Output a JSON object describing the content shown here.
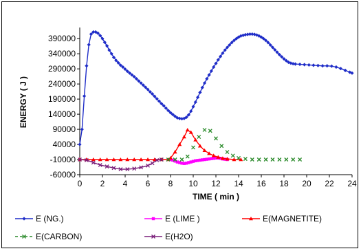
{
  "chart_data": {
    "type": "line",
    "title": "",
    "xlabel": "TIME ( min )",
    "ylabel": "ENERGY ( J )",
    "xlim": [
      0,
      24
    ],
    "ylim": [
      -60000,
      420000
    ],
    "x_ticks": [
      0,
      2,
      4,
      6,
      8,
      10,
      12,
      14,
      16,
      18,
      20,
      22,
      24
    ],
    "y_ticks": [
      -60000,
      -10000,
      40000,
      90000,
      140000,
      190000,
      240000,
      290000,
      340000,
      390000
    ],
    "grid": false,
    "legend_position": "bottom",
    "series": [
      {
        "name": "E (NG.)",
        "color": "#1f2dc8",
        "marker": "diamond",
        "line": "solid",
        "points": [
          [
            0,
            40000
          ],
          [
            0.2,
            90000
          ],
          [
            0.4,
            200000
          ],
          [
            0.6,
            300000
          ],
          [
            0.8,
            370000
          ],
          [
            1.0,
            405000
          ],
          [
            1.2,
            412000
          ],
          [
            1.4,
            412000
          ],
          [
            1.6,
            408000
          ],
          [
            1.8,
            400000
          ],
          [
            2.0,
            390000
          ],
          [
            2.2,
            378000
          ],
          [
            2.4,
            366000
          ],
          [
            2.6,
            352000
          ],
          [
            2.8,
            340000
          ],
          [
            3.0,
            328000
          ],
          [
            3.2,
            318000
          ],
          [
            3.4,
            310000
          ],
          [
            3.6,
            302000
          ],
          [
            3.8,
            296000
          ],
          [
            4.0,
            289000
          ],
          [
            4.2,
            282000
          ],
          [
            4.4,
            276000
          ],
          [
            4.6,
            270000
          ],
          [
            4.8,
            264000
          ],
          [
            5.0,
            257000
          ],
          [
            5.2,
            250000
          ],
          [
            5.4,
            243000
          ],
          [
            5.6,
            236000
          ],
          [
            5.8,
            229000
          ],
          [
            6.0,
            222000
          ],
          [
            6.2,
            214000
          ],
          [
            6.4,
            207000
          ],
          [
            6.6,
            199000
          ],
          [
            6.8,
            191000
          ],
          [
            7.0,
            183000
          ],
          [
            7.2,
            175000
          ],
          [
            7.4,
            168000
          ],
          [
            7.6,
            160000
          ],
          [
            7.8,
            152000
          ],
          [
            8.0,
            145000
          ],
          [
            8.2,
            139000
          ],
          [
            8.4,
            133000
          ],
          [
            8.6,
            128000
          ],
          [
            8.8,
            126000
          ],
          [
            9.0,
            125000
          ],
          [
            9.2,
            126000
          ],
          [
            9.4,
            130000
          ],
          [
            9.6,
            138000
          ],
          [
            9.8,
            150000
          ],
          [
            10.0,
            165000
          ],
          [
            10.2,
            180000
          ],
          [
            10.4,
            196000
          ],
          [
            10.6,
            212000
          ],
          [
            10.8,
            228000
          ],
          [
            11.0,
            243000
          ],
          [
            11.2,
            257000
          ],
          [
            11.4,
            270000
          ],
          [
            11.6,
            283000
          ],
          [
            11.8,
            296000
          ],
          [
            12.0,
            308000
          ],
          [
            12.2,
            320000
          ],
          [
            12.4,
            331000
          ],
          [
            12.6,
            342000
          ],
          [
            12.8,
            352000
          ],
          [
            13.0,
            361000
          ],
          [
            13.2,
            369000
          ],
          [
            13.4,
            377000
          ],
          [
            13.6,
            384000
          ],
          [
            13.8,
            390000
          ],
          [
            14.0,
            395000
          ],
          [
            14.2,
            399000
          ],
          [
            14.4,
            401000
          ],
          [
            14.6,
            403000
          ],
          [
            14.8,
            404000
          ],
          [
            15.0,
            405000
          ],
          [
            15.2,
            405000
          ],
          [
            15.4,
            404000
          ],
          [
            15.6,
            402000
          ],
          [
            15.8,
            399000
          ],
          [
            16.0,
            395000
          ],
          [
            16.2,
            390000
          ],
          [
            16.4,
            384000
          ],
          [
            16.6,
            377000
          ],
          [
            16.8,
            369000
          ],
          [
            17.0,
            361000
          ],
          [
            17.2,
            353000
          ],
          [
            17.4,
            345000
          ],
          [
            17.6,
            337000
          ],
          [
            17.8,
            330000
          ],
          [
            18.0,
            323000
          ],
          [
            18.2,
            317000
          ],
          [
            18.4,
            312000
          ],
          [
            18.6,
            309000
          ],
          [
            18.8,
            307000
          ],
          [
            19.0,
            306000
          ],
          [
            19.4,
            305000
          ],
          [
            19.8,
            304000
          ],
          [
            20.2,
            303000
          ],
          [
            20.6,
            302000
          ],
          [
            21.0,
            301000
          ],
          [
            21.4,
            300000
          ],
          [
            21.8,
            300000
          ],
          [
            22.2,
            299000
          ],
          [
            22.6,
            296000
          ],
          [
            23.0,
            291000
          ],
          [
            23.4,
            285000
          ],
          [
            23.8,
            279000
          ],
          [
            24.0,
            276000
          ]
        ]
      },
      {
        "name": "E (LIME )",
        "color": "#ff00ff",
        "marker": "square",
        "line": "solid",
        "points": [
          [
            8.0,
            -10000
          ],
          [
            8.2,
            -12000
          ],
          [
            8.4,
            -15000
          ],
          [
            8.6,
            -18000
          ],
          [
            8.8,
            -20000
          ],
          [
            9.0,
            -22000
          ],
          [
            9.2,
            -23000
          ],
          [
            9.4,
            -22000
          ],
          [
            9.6,
            -20000
          ],
          [
            9.8,
            -18000
          ],
          [
            10.0,
            -16000
          ],
          [
            10.2,
            -14000
          ],
          [
            10.4,
            -13000
          ],
          [
            10.6,
            -12000
          ],
          [
            10.8,
            -11000
          ],
          [
            11.0,
            -10000
          ],
          [
            11.2,
            -9000
          ],
          [
            11.4,
            -8000
          ],
          [
            11.6,
            -7000
          ],
          [
            11.8,
            -6000
          ],
          [
            12.0,
            -5000
          ],
          [
            12.2,
            -5000
          ],
          [
            12.4,
            -6000
          ],
          [
            12.6,
            -8000
          ],
          [
            12.8,
            -9000
          ],
          [
            13.0,
            -10000
          ]
        ]
      },
      {
        "name": "E(MAGNETITE)",
        "color": "#ff0000",
        "marker": "triangle",
        "line": "solid",
        "points": [
          [
            0,
            -10000
          ],
          [
            0.6,
            -10000
          ],
          [
            1.2,
            -10000
          ],
          [
            1.8,
            -10000
          ],
          [
            2.4,
            -10000
          ],
          [
            3.0,
            -10000
          ],
          [
            3.6,
            -10000
          ],
          [
            4.2,
            -10000
          ],
          [
            4.8,
            -10000
          ],
          [
            5.4,
            -10000
          ],
          [
            6.0,
            -10000
          ],
          [
            6.6,
            -10000
          ],
          [
            7.2,
            -10000
          ],
          [
            7.8,
            -10000
          ],
          [
            8.0,
            -5000
          ],
          [
            8.4,
            15000
          ],
          [
            8.8,
            40000
          ],
          [
            9.2,
            65000
          ],
          [
            9.5,
            88000
          ],
          [
            9.8,
            80000
          ],
          [
            10.2,
            55000
          ],
          [
            10.6,
            35000
          ],
          [
            11.0,
            20000
          ],
          [
            11.4,
            10000
          ],
          [
            11.8,
            3000
          ],
          [
            12.2,
            -2000
          ],
          [
            12.6,
            -6000
          ],
          [
            13.0,
            -8000
          ],
          [
            13.6,
            -10000
          ],
          [
            14.2,
            -10000
          ]
        ]
      },
      {
        "name": "E(CARBON)",
        "color": "#2a8a2a",
        "marker": "x",
        "line": "dashed",
        "points": [
          [
            7.2,
            -10000
          ],
          [
            7.8,
            -10000
          ],
          [
            8.4,
            -10000
          ],
          [
            9.0,
            -10000
          ],
          [
            9.5,
            0
          ],
          [
            10.0,
            30000
          ],
          [
            10.5,
            65000
          ],
          [
            11.0,
            88000
          ],
          [
            11.5,
            85000
          ],
          [
            12.0,
            60000
          ],
          [
            12.5,
            35000
          ],
          [
            13.0,
            15000
          ],
          [
            13.5,
            3000
          ],
          [
            14.0,
            -5000
          ],
          [
            14.6,
            -8000
          ],
          [
            15.2,
            -10000
          ],
          [
            15.8,
            -10000
          ],
          [
            16.4,
            -10000
          ],
          [
            17.0,
            -10000
          ],
          [
            17.6,
            -10000
          ],
          [
            18.2,
            -10000
          ],
          [
            18.8,
            -10000
          ],
          [
            19.4,
            -10000
          ]
        ]
      },
      {
        "name": "E(H2O)",
        "color": "#7a1f7a",
        "marker": "x",
        "line": "solid",
        "points": [
          [
            0,
            -10000
          ],
          [
            0.6,
            -12000
          ],
          [
            1.2,
            -20000
          ],
          [
            1.8,
            -28000
          ],
          [
            2.4,
            -33000
          ],
          [
            3.0,
            -38000
          ],
          [
            3.6,
            -42000
          ],
          [
            4.2,
            -42000
          ],
          [
            4.8,
            -40000
          ],
          [
            5.4,
            -36000
          ],
          [
            6.0,
            -30000
          ],
          [
            6.4,
            -22000
          ],
          [
            6.8,
            -12000
          ],
          [
            7.2,
            -10000
          ]
        ]
      }
    ]
  }
}
